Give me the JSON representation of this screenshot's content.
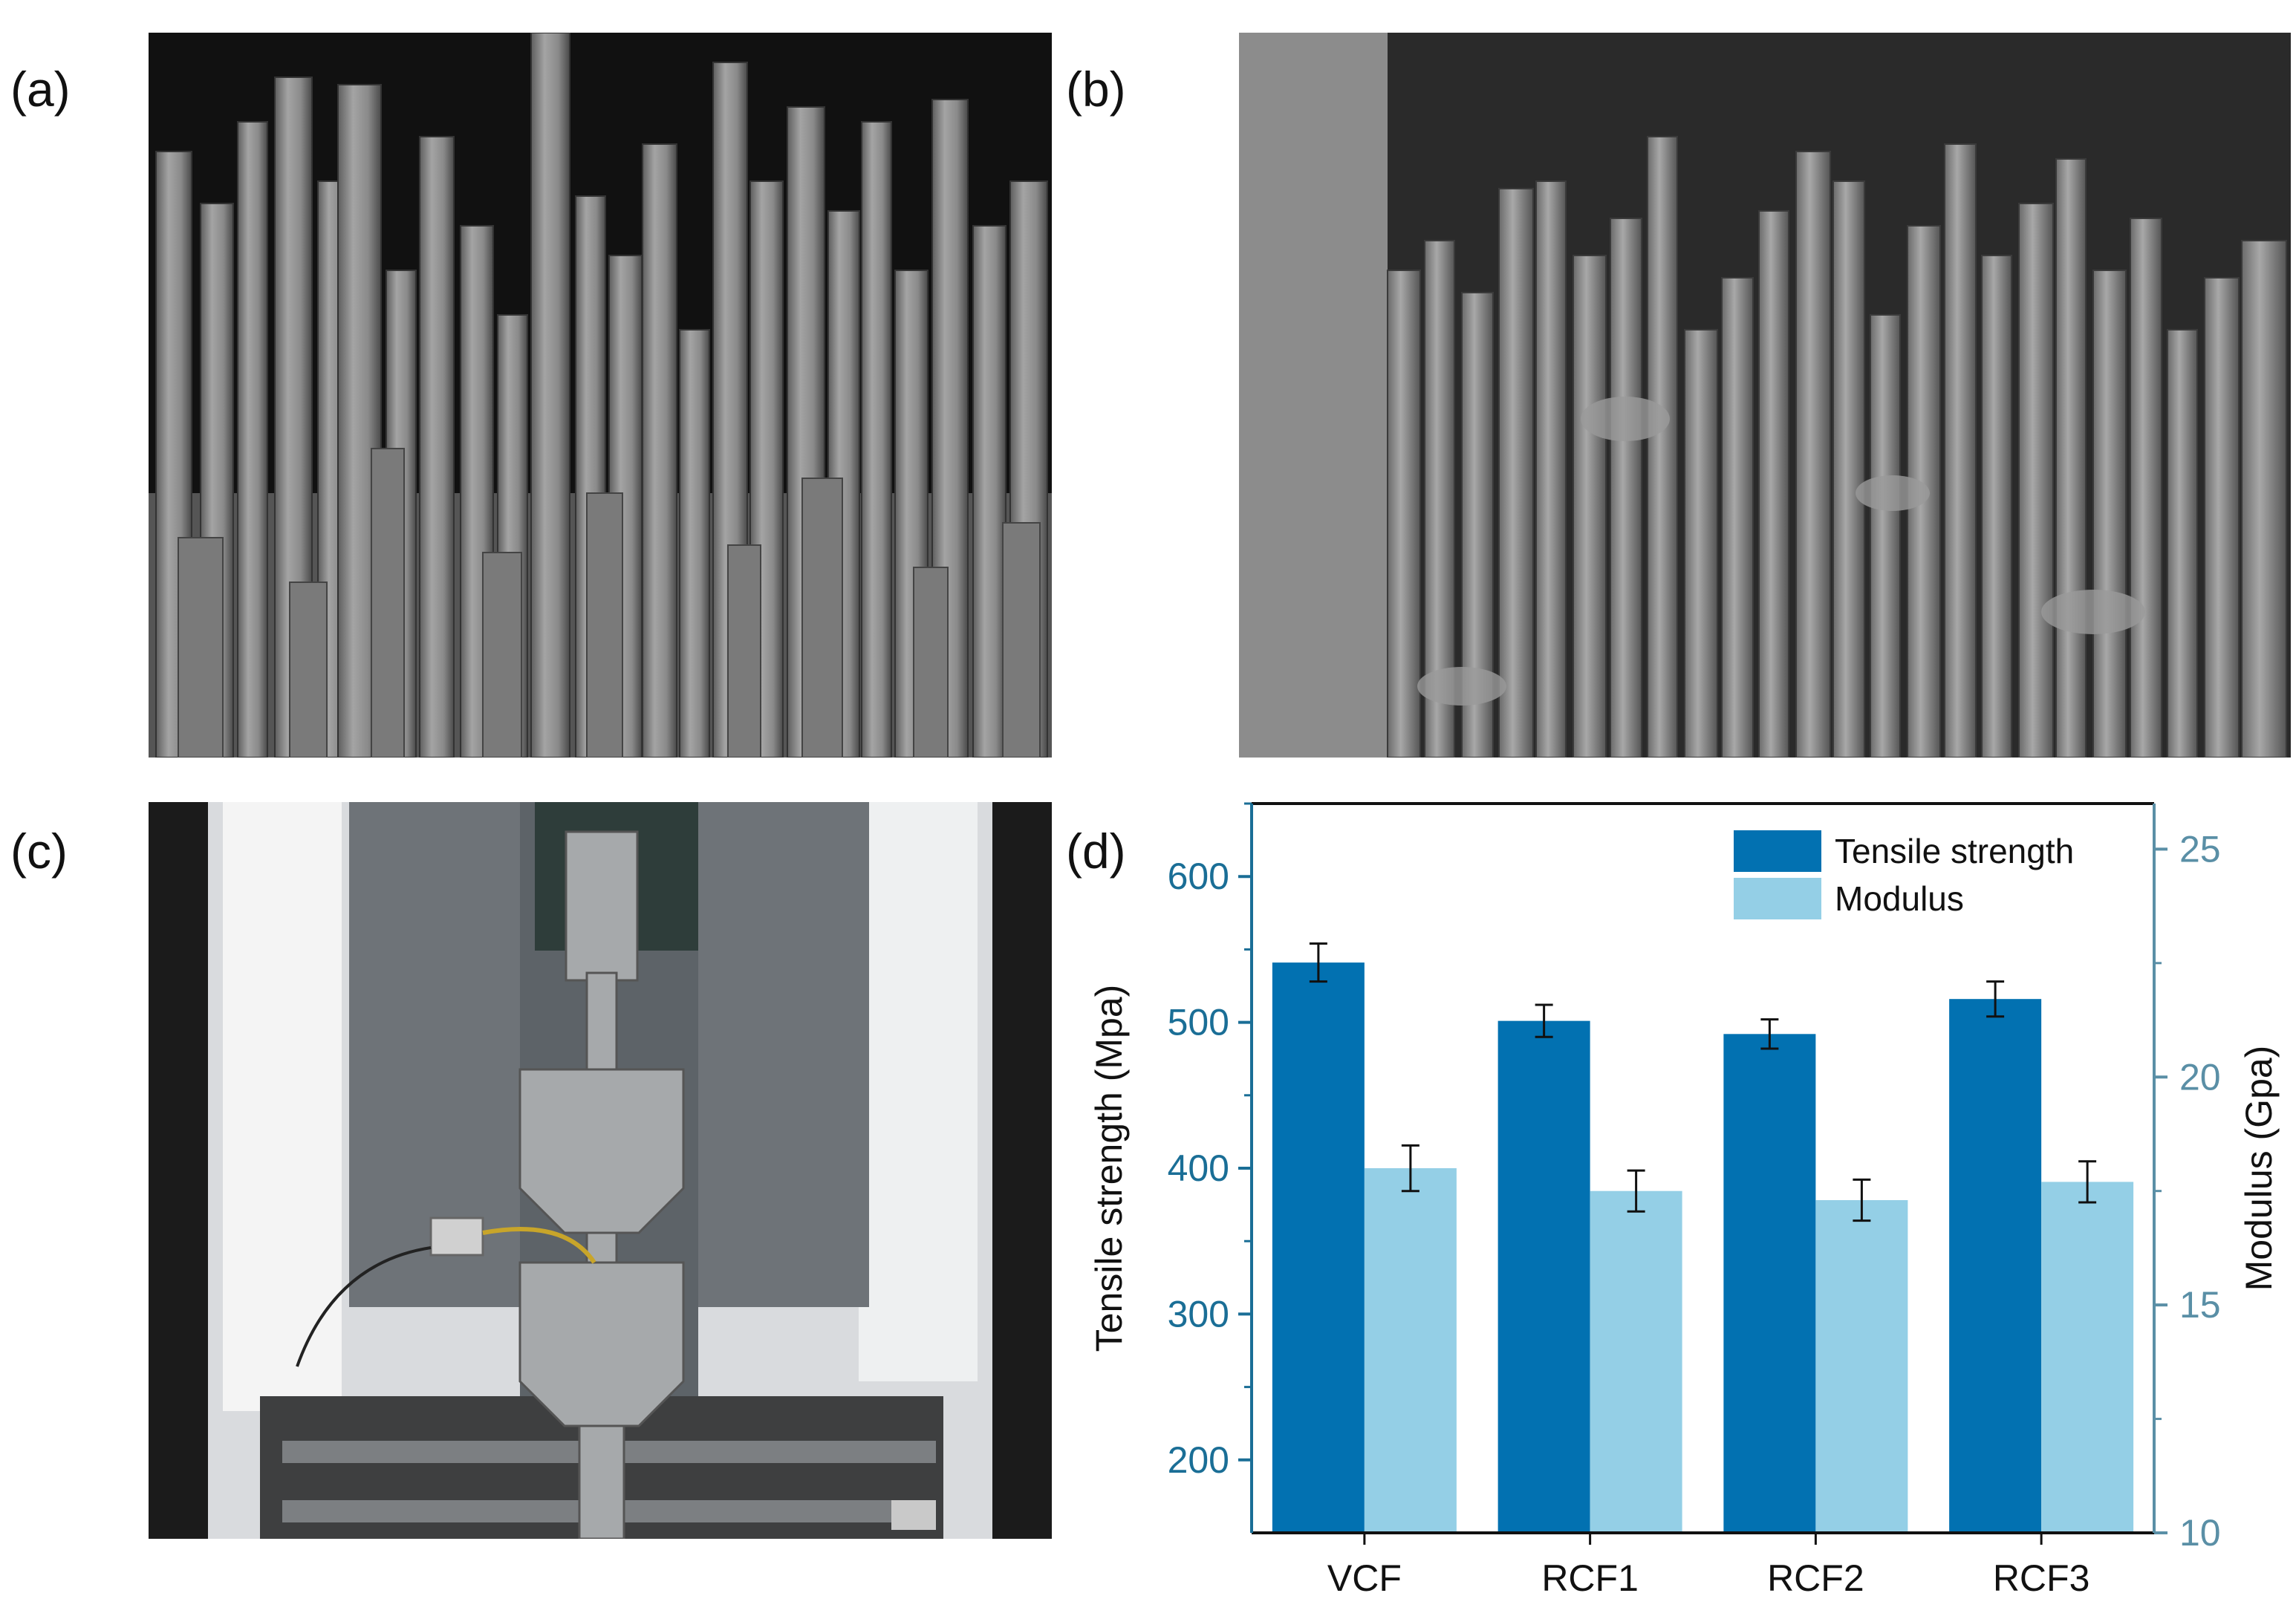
{
  "panels": {
    "a": {
      "label": "(a)"
    },
    "b": {
      "label": "(b)"
    },
    "c": {
      "label": "(c)"
    },
    "d": {
      "label": "(d)"
    }
  },
  "chart_data": {
    "type": "bar",
    "categories": [
      "VCF",
      "RCF1",
      "RCF2",
      "RCF3"
    ],
    "series": [
      {
        "name": "Tensile strength",
        "axis": "left",
        "color": "#0271b1",
        "values": [
          541,
          501,
          492,
          516
        ],
        "errors": [
          13,
          11,
          10,
          12
        ]
      },
      {
        "name": "Modulus",
        "axis": "right",
        "color": "#94cfe6",
        "values": [
          18.0,
          17.5,
          17.3,
          17.7
        ],
        "errors": [
          0.5,
          0.45,
          0.45,
          0.45
        ]
      }
    ],
    "ylabel": "Tensile strength (Mpa)",
    "ylabel_right": "Modulus (Gpa)",
    "ylim": [
      150,
      650
    ],
    "ylim_right": [
      10,
      26
    ],
    "yticks": [
      200,
      300,
      400,
      500,
      600
    ],
    "yticks_right": [
      10,
      15,
      20,
      25
    ],
    "axis_color_left": "#1a6e96",
    "axis_color_right": "#5a8fa6",
    "legend_position": "top-right",
    "grid": false
  }
}
